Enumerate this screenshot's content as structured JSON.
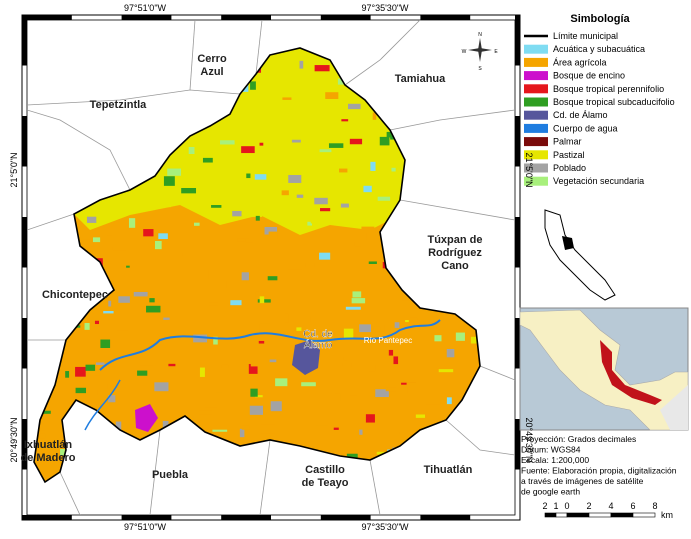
{
  "map_title_legend": "Simbología",
  "coordinates": {
    "top": [
      "97°51'0\"W",
      "97°35'30\"W"
    ],
    "bottom": [
      "97°51'0\"W",
      "97°35'30\"W"
    ],
    "left": [
      "21°5'0\"N",
      "20°49'30\"N"
    ],
    "right": [
      "21°5'0\"N",
      "20°49'30\"N"
    ]
  },
  "municipalities": [
    {
      "lines": [
        "Cerro",
        "Azul"
      ]
    },
    {
      "lines": [
        "Tamiahua"
      ]
    },
    {
      "lines": [
        "Tepetzintla"
      ]
    },
    {
      "lines": [
        "Túxpan de",
        "Rodríguez",
        "Cano"
      ]
    },
    {
      "lines": [
        "Chicontepec"
      ]
    },
    {
      "lines": [
        "Ixhuatlán",
        "de Madero"
      ]
    },
    {
      "lines": [
        "Puebla"
      ]
    },
    {
      "lines": [
        "Castillo",
        "de Teayo"
      ]
    },
    {
      "lines": [
        "Tihuatlán"
      ]
    }
  ],
  "places": {
    "city": [
      "Cd. de",
      "Álamo"
    ],
    "river": "Río Pantepec"
  },
  "legend": [
    {
      "label": "Límite municipal",
      "color": "#000000",
      "kind": "line"
    },
    {
      "label": "Acuática y subacuática",
      "color": "#7fdcf2"
    },
    {
      "label": "Área agrícola",
      "color": "#f5a500"
    },
    {
      "label": "Bosque de encino",
      "color": "#cc10cc"
    },
    {
      "label": "Bosque tropical perennifolio",
      "color": "#e5161c"
    },
    {
      "label": "Bosque tropical subcaducifolio",
      "color": "#2f9e22"
    },
    {
      "label": "Cd. de Álamo",
      "color": "#56569c"
    },
    {
      "label": "Cuerpo de agua",
      "color": "#1f7de0"
    },
    {
      "label": "Palmar",
      "color": "#7a0b0b"
    },
    {
      "label": "Pastizal",
      "color": "#e6e600"
    },
    {
      "label": "Poblado",
      "color": "#a3a3a3"
    },
    {
      "label": "Vegetación secundaria",
      "color": "#a8f07c"
    }
  ],
  "notes": [
    "Proyección: Grados decimales",
    "Datum: WGS84",
    "Escala: 1:200,000",
    "Fuente: Elaboración propia, digitalización",
    "a través de imágenes de satélite",
    "de google earth"
  ],
  "scale": {
    "ticks": [
      "2",
      "1",
      "0",
      "2",
      "4",
      "6",
      "8"
    ],
    "unit": "km"
  },
  "compass": [
    "N",
    "E",
    "S",
    "W"
  ]
}
